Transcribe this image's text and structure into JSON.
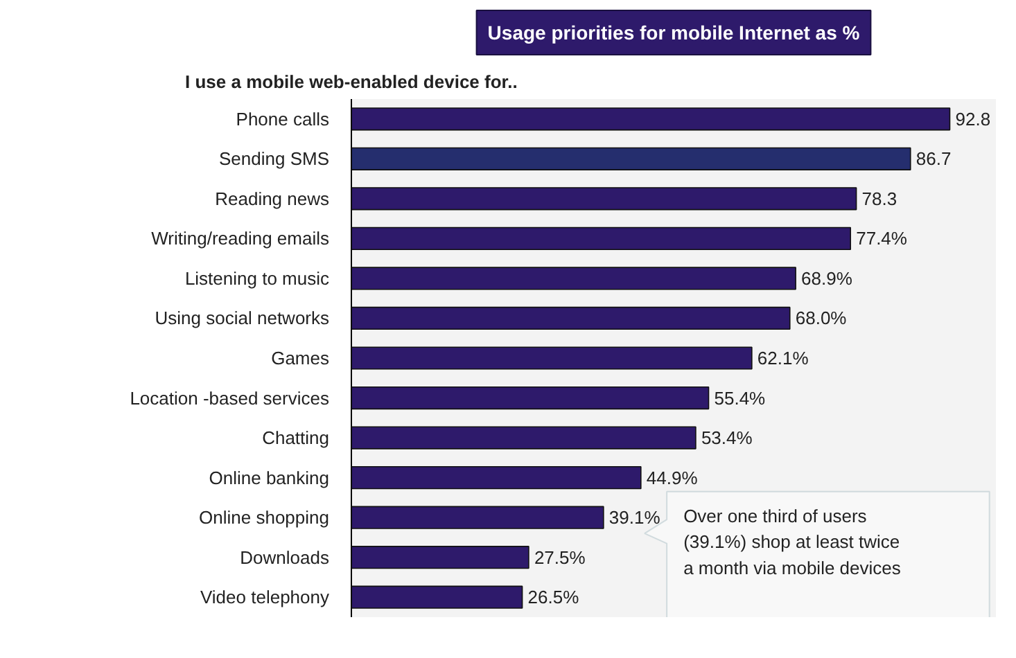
{
  "chart_data": {
    "type": "bar",
    "orientation": "horizontal",
    "title": "Usage priorities for mobile Internet as %",
    "subtitle": "I use a mobile web-enabled device for..",
    "categories": [
      "Phone calls",
      "Sending SMS",
      "Reading news",
      "Writing/reading emails",
      "Listening to music",
      "Using social networks",
      "Games",
      "Location -based services",
      "Chatting",
      "Online banking",
      "Online shopping",
      "Downloads",
      "Video telephony"
    ],
    "values": [
      92.8,
      86.7,
      78.3,
      77.4,
      68.9,
      68.0,
      62.1,
      55.4,
      53.4,
      44.9,
      39.1,
      27.5,
      26.5
    ],
    "value_labels": [
      "92.8",
      "86.7",
      "78.3",
      "77.4%",
      "68.9%",
      "68.0%",
      "62.1%",
      "55.4%",
      "53.4%",
      "44.9%",
      "39.1%",
      "27.5%",
      "26.5%"
    ],
    "colors": [
      "#2e1a6b",
      "#252e6e",
      "#2e1a6b",
      "#2e1a6b",
      "#2e1a6b",
      "#2e1a6b",
      "#2e1a6b",
      "#2e1a6b",
      "#2e1a6b",
      "#2e1a6b",
      "#2e1a6b",
      "#2e1a6b",
      "#2e1a6b"
    ],
    "annotations": [
      "Over one third of users\n(39.1%) shop at least twice\na month via mobile devices"
    ],
    "grid": false
  }
}
